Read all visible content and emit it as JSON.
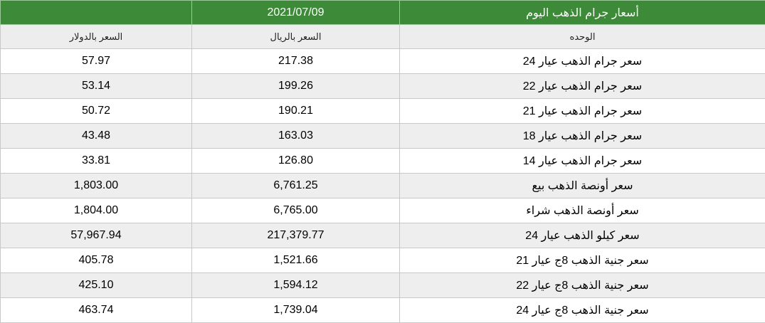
{
  "table": {
    "header": {
      "blank": "",
      "date": "2021/07/09",
      "title": "أسعار جرام الذهب اليوم"
    },
    "columns": {
      "usd": "السعر بالدولار",
      "sar": "السعر بالريال",
      "unit": "الوحده"
    },
    "rows": [
      {
        "unit": "سعر جرام الذهب عيار 24",
        "sar": "217.38",
        "usd": "57.97"
      },
      {
        "unit": "سعر جرام الذهب عيار 22",
        "sar": "199.26",
        "usd": "53.14"
      },
      {
        "unit": "سعر جرام الذهب عيار 21",
        "sar": "190.21",
        "usd": "50.72"
      },
      {
        "unit": "سعر جرام الذهب عيار 18",
        "sar": "163.03",
        "usd": "43.48"
      },
      {
        "unit": "سعر جرام الذهب عيار 14",
        "sar": "126.80",
        "usd": "33.81"
      },
      {
        "unit": "سعر أونصة الذهب بيع",
        "sar": "6,761.25",
        "usd": "1,803.00"
      },
      {
        "unit": "سعر أونصة الذهب شراء",
        "sar": "6,765.00",
        "usd": "1,804.00"
      },
      {
        "unit": "سعر كيلو الذهب عيار 24",
        "sar": "217,379.77",
        "usd": "57,967.94"
      },
      {
        "unit": "سعر جنية الذهب 8ج عيار 21",
        "sar": "1,521.66",
        "usd": "405.78"
      },
      {
        "unit": "سعر جنية الذهب 8ج عيار 22",
        "sar": "1,594.12",
        "usd": "425.10"
      },
      {
        "unit": "سعر جنية الذهب 8ج عيار 24",
        "sar": "1,739.04",
        "usd": "463.74"
      }
    ]
  },
  "colors": {
    "header_green": "#3d8a38",
    "header_text": "#ffffff",
    "stripe": "#eeeeee"
  }
}
